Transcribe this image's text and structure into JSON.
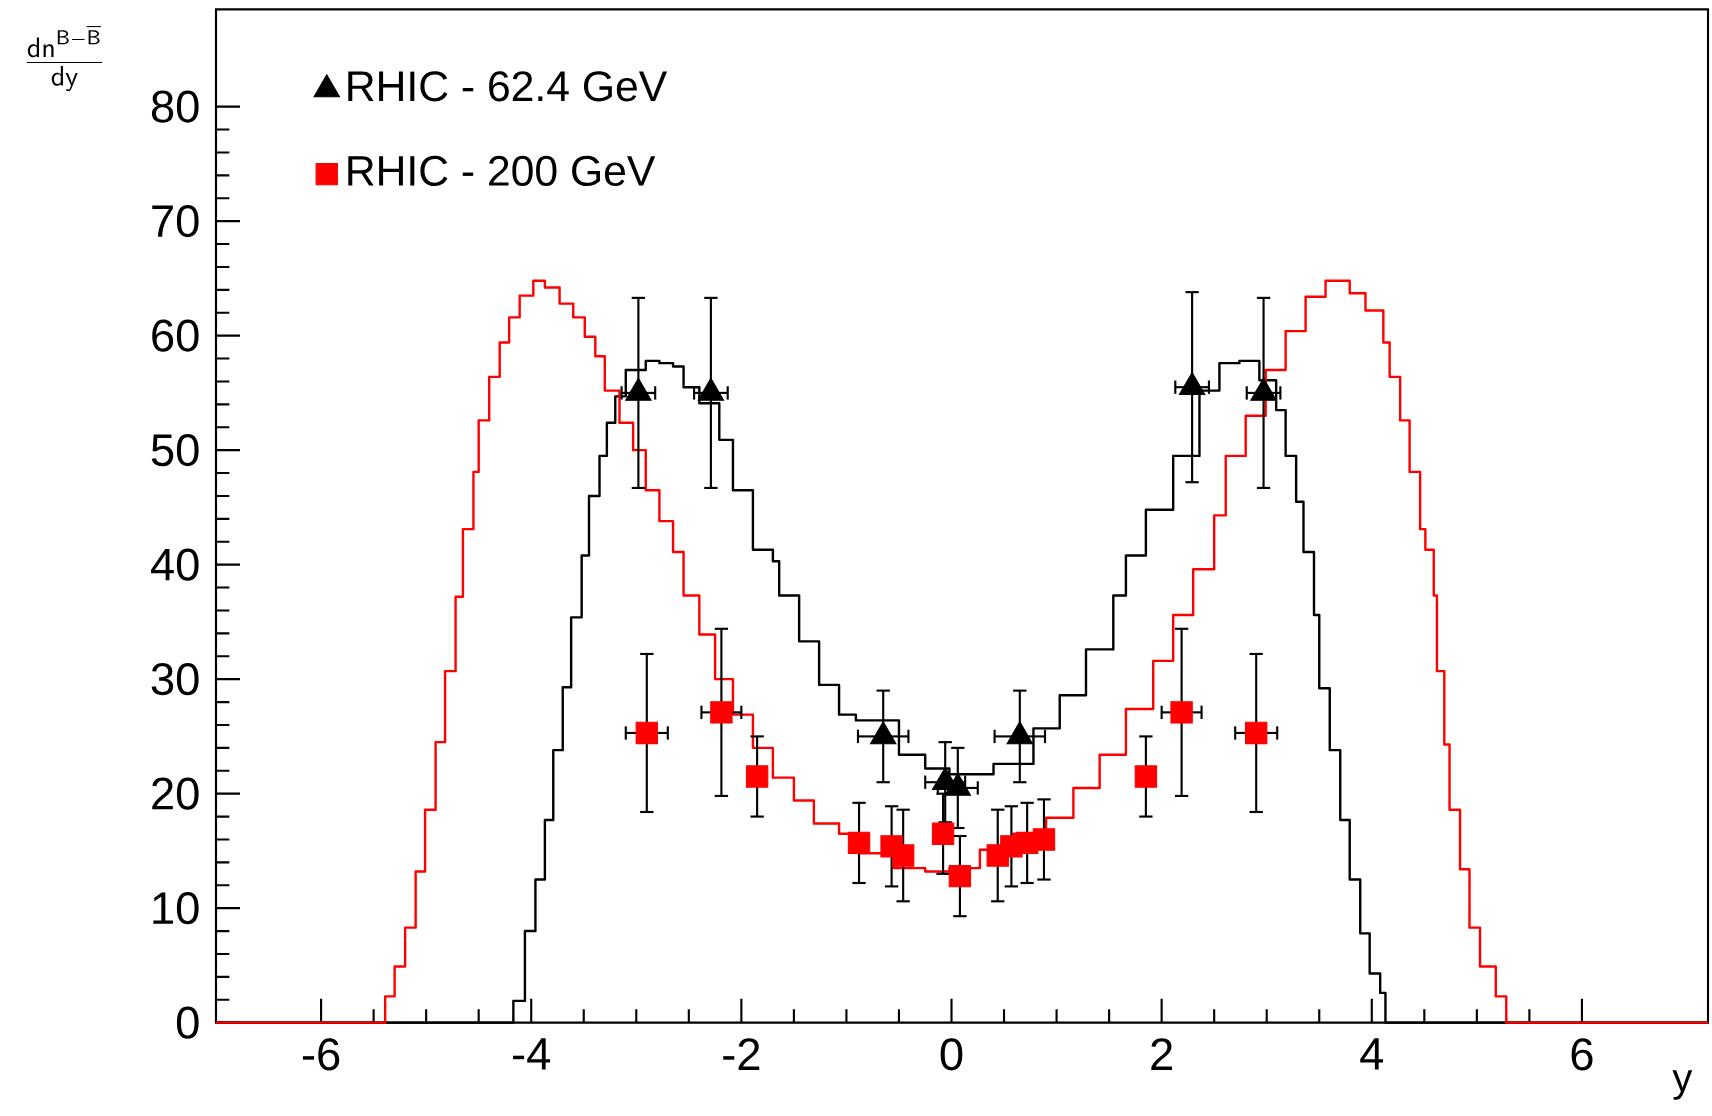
{
  "chart_data": {
    "type": "scatter",
    "xlabel": "y",
    "ylabel": "\\frac{\\mathsf{dn}^{\\mathsf{B}\\mathsf{-}\\overline{\\mathsf{B}}}}{\\mathsf{dy}}",
    "xlim": [
      -7,
      7.2
    ],
    "ylim": [
      0,
      88.5
    ],
    "xticks": [
      -6,
      -4,
      -2,
      0,
      2,
      4,
      6
    ],
    "yticks": [
      0,
      10,
      20,
      30,
      40,
      50,
      60,
      70,
      80
    ],
    "grid": false,
    "legend": "top left",
    "series": [
      {
        "type": "step",
        "color": "#000000",
        "marker": "none",
        "x": [
          -7,
          -4.17,
          -4.06,
          -3.96,
          -3.87,
          -3.79,
          -3.7,
          -3.62,
          -3.52,
          -3.45,
          -3.35,
          -3.28,
          -3.2,
          -3.1,
          -2.91,
          -2.78,
          -2.65,
          -2.55,
          -2.4,
          -2.21,
          -2.08,
          -1.89,
          -1.7,
          -1.64,
          -1.45,
          -1.26,
          -1.07,
          -0.91,
          -0.5,
          -0.25,
          -0.02,
          0.4,
          0.78,
          1.03,
          1.28,
          1.54,
          1.66,
          1.85,
          2.11,
          2.36,
          2.55,
          2.74,
          2.93,
          3.09,
          3.18,
          3.28,
          3.35,
          3.45,
          3.5,
          3.6,
          3.7,
          3.79,
          3.89,
          3.98,
          4.08,
          4.13,
          7.2
        ],
        "values": [
          0,
          1.9,
          8,
          12.5,
          17.7,
          23.8,
          29.3,
          35.4,
          40.8,
          46,
          49.5,
          52.4,
          54.7,
          57,
          57.8,
          57.6,
          57.3,
          55.5,
          54.1,
          50.9,
          46.5,
          41.3,
          40.3,
          37.3,
          33.3,
          29.5,
          26.9,
          26.4,
          23.4,
          22.2,
          21.7,
          22.6,
          25.7,
          28.6,
          32.6,
          37.3,
          40.8,
          44.8,
          49.5,
          55.2,
          57.6,
          57.8,
          56.1,
          53.5,
          49.5,
          45.5,
          41.1,
          35.6,
          29.2,
          23.8,
          17.7,
          12.5,
          7.8,
          4.3,
          2.6,
          0,
          0
        ]
      },
      {
        "type": "step",
        "color": "#ff0000",
        "marker": "none",
        "x": [
          -7,
          -5.39,
          -5.3,
          -5.2,
          -5.1,
          -5.01,
          -4.91,
          -4.82,
          -4.72,
          -4.65,
          -4.55,
          -4.5,
          -4.4,
          -4.3,
          -4.21,
          -4.11,
          -3.98,
          -3.87,
          -3.73,
          -3.6,
          -3.49,
          -3.39,
          -3.3,
          -3.16,
          -3.03,
          -2.91,
          -2.78,
          -2.65,
          -2.55,
          -2.4,
          -2.25,
          -2.08,
          -1.89,
          -1.7,
          -1.5,
          -1.31,
          -1.07,
          -0.88,
          -0.55,
          -0.25,
          -0.02,
          0.27,
          0.59,
          0.9,
          1.16,
          1.41,
          1.66,
          1.92,
          2.11,
          2.3,
          2.5,
          2.61,
          2.8,
          2.99,
          3.18,
          3.37,
          3.56,
          3.79,
          3.94,
          4.11,
          4.17,
          4.27,
          4.36,
          4.46,
          4.51,
          4.59,
          4.62,
          4.69,
          4.74,
          4.84,
          4.93,
          5.03,
          5.18,
          5.28,
          7.2
        ],
        "values": [
          0,
          2.3,
          4.9,
          8.3,
          13.2,
          18.6,
          24.5,
          30.7,
          37.2,
          43.1,
          48.1,
          52.6,
          56.4,
          59.4,
          61.6,
          63.5,
          64.8,
          64.2,
          62.8,
          61.6,
          59.9,
          58.2,
          55.2,
          52.4,
          50,
          46.5,
          43.8,
          41.1,
          37.3,
          33.9,
          30,
          26.9,
          24,
          21.4,
          19.4,
          17.4,
          16.5,
          14.8,
          13.5,
          13.2,
          13.5,
          15.1,
          16.5,
          17.9,
          20.5,
          23.4,
          27.4,
          31.6,
          35.6,
          39.6,
          44.3,
          49.5,
          53,
          57,
          60.4,
          63.4,
          64.8,
          63.7,
          62.2,
          59.4,
          56.4,
          52.6,
          48.1,
          43.1,
          41.3,
          37.3,
          30.7,
          24.3,
          18.6,
          13.4,
          8.3,
          4.9,
          2.3,
          0,
          0
        ]
      },
      {
        "name": "RHIC - 62.4 GeV",
        "color": "#000000",
        "marker": "triangle",
        "x": [
          -2.98,
          -2.29,
          -0.65,
          -0.06,
          0.06,
          0.65,
          2.29,
          2.97
        ],
        "values": [
          55,
          55,
          25,
          21,
          20.5,
          25,
          55.5,
          55
        ],
        "errors": [
          8.3,
          8.3,
          4,
          3.5,
          3.5,
          4,
          8.3,
          8.3
        ],
        "xerrors": [
          0.16,
          0.16,
          0.24,
          0.19,
          0.19,
          0.24,
          0.16,
          0.16
        ]
      },
      {
        "name": "RHIC - 200 GeV",
        "color": "#ff0000",
        "marker": "square",
        "x": [
          -2.9,
          -2.19,
          -1.85,
          -0.88,
          -0.57,
          -0.46,
          -0.08,
          0.08,
          0.44,
          0.57,
          0.72,
          0.88,
          1.85,
          2.19,
          2.9
        ],
        "values": [
          25.3,
          27.1,
          21.5,
          15.7,
          15.4,
          14.6,
          16.5,
          12.8,
          14.6,
          15.4,
          15.7,
          16,
          21.5,
          27.1,
          25.3
        ],
        "errors": [
          6.9,
          7.3,
          3.5,
          3.5,
          3.5,
          4,
          3.5,
          3.5,
          4,
          3.5,
          3.5,
          3.5,
          3.5,
          7.3,
          6.9
        ],
        "xerrors": [
          0.2,
          0.19,
          null,
          null,
          null,
          null,
          null,
          null,
          null,
          null,
          null,
          null,
          null,
          0.19,
          0.2
        ]
      }
    ]
  }
}
